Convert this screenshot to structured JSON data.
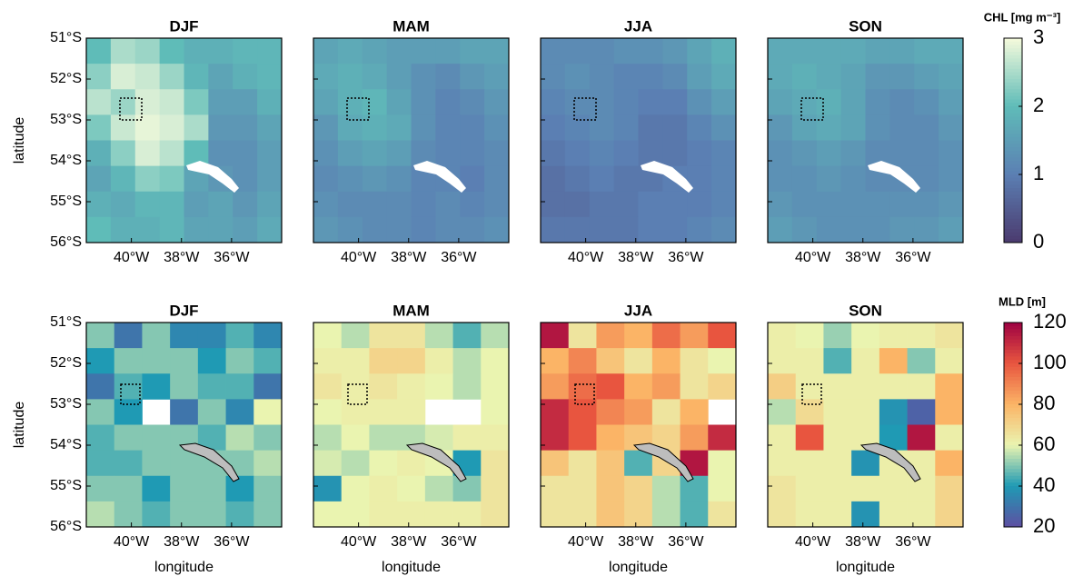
{
  "chart_data": [
    {
      "type": "heatmap",
      "ylabel": "latitude",
      "xlim": [
        -41.8,
        -34
      ],
      "ylim": [
        -56,
        -51
      ],
      "xticks": [
        {
          "value": -40,
          "label": "40°W"
        },
        {
          "value": -38,
          "label": "38°W"
        },
        {
          "value": -36,
          "label": "36°W"
        }
      ],
      "yticks": [
        {
          "value": -51,
          "label": "51°S"
        },
        {
          "value": -52,
          "label": "52°S"
        },
        {
          "value": -53,
          "label": "53°S"
        },
        {
          "value": -54,
          "label": "54°S"
        },
        {
          "value": -55,
          "label": "55°S"
        },
        {
          "value": -56,
          "label": "56°S"
        }
      ],
      "colormap": [
        "#4b3a6e",
        "#5b7fb3",
        "#5fbcb8",
        "#f6fbdc"
      ],
      "colorbar": {
        "label": "CHL [mg m⁻³]",
        "lim": [
          0,
          3
        ],
        "ticks": [
          0,
          1,
          2,
          3
        ]
      },
      "panels": [
        {
          "title": "DJF",
          "z": [
            [
              2.0,
              2.5,
              2.4,
              2.0,
              1.8,
              1.8,
              1.9,
              1.9
            ],
            [
              2.3,
              2.8,
              2.7,
              2.4,
              1.9,
              1.6,
              1.8,
              1.9
            ],
            [
              2.6,
              2.4,
              2.8,
              2.7,
              2.2,
              1.5,
              1.5,
              1.8
            ],
            [
              2.2,
              2.7,
              2.9,
              2.8,
              2.5,
              1.4,
              1.4,
              1.6
            ],
            [
              1.8,
              2.3,
              2.8,
              2.6,
              2.0,
              1.3,
              1.3,
              1.5
            ],
            [
              1.6,
              1.9,
              2.3,
              2.2,
              1.6,
              1.4,
              1.3,
              1.5
            ],
            [
              1.8,
              1.7,
              1.9,
              1.9,
              1.5,
              1.6,
              1.4,
              1.6
            ],
            [
              2.0,
              1.8,
              1.8,
              1.9,
              1.6,
              1.6,
              1.5,
              1.7
            ]
          ]
        },
        {
          "title": "MAM",
          "z": [
            [
              1.6,
              1.7,
              1.6,
              1.5,
              1.5,
              1.5,
              1.6,
              1.6
            ],
            [
              1.7,
              1.8,
              1.7,
              1.5,
              1.3,
              1.2,
              1.4,
              1.5
            ],
            [
              1.6,
              1.8,
              1.9,
              1.6,
              1.3,
              1.1,
              1.2,
              1.4
            ],
            [
              1.4,
              1.7,
              1.8,
              1.7,
              1.3,
              1.1,
              1.1,
              1.3
            ],
            [
              1.3,
              1.5,
              1.6,
              1.5,
              1.2,
              1.1,
              1.1,
              1.2
            ],
            [
              1.2,
              1.3,
              1.4,
              1.3,
              1.1,
              1.1,
              1.0,
              1.2
            ],
            [
              1.3,
              1.2,
              1.2,
              1.2,
              1.1,
              1.2,
              1.1,
              1.2
            ],
            [
              1.4,
              1.3,
              1.2,
              1.2,
              1.1,
              1.2,
              1.2,
              1.3
            ]
          ]
        },
        {
          "title": "JJA",
          "z": [
            [
              1.2,
              1.2,
              1.2,
              1.3,
              1.3,
              1.4,
              1.6,
              1.8
            ],
            [
              1.2,
              1.3,
              1.2,
              1.1,
              1.1,
              1.2,
              1.5,
              1.7
            ],
            [
              1.1,
              1.2,
              1.2,
              1.1,
              1.0,
              1.0,
              1.3,
              1.5
            ],
            [
              1.0,
              1.1,
              1.2,
              1.1,
              0.9,
              0.9,
              1.1,
              1.3
            ],
            [
              0.9,
              1.0,
              1.1,
              1.0,
              0.9,
              0.9,
              1.0,
              1.1
            ],
            [
              0.8,
              0.9,
              1.0,
              0.9,
              0.9,
              1.0,
              1.0,
              1.1
            ],
            [
              0.8,
              0.8,
              0.9,
              0.9,
              1.0,
              1.0,
              1.0,
              1.1
            ],
            [
              0.9,
              0.9,
              0.9,
              0.9,
              1.0,
              1.0,
              1.1,
              1.2
            ]
          ]
        },
        {
          "title": "SON",
          "z": [
            [
              1.7,
              1.7,
              1.7,
              1.7,
              1.6,
              1.6,
              1.7,
              1.7
            ],
            [
              1.7,
              1.8,
              1.7,
              1.6,
              1.4,
              1.4,
              1.5,
              1.6
            ],
            [
              1.6,
              1.7,
              1.8,
              1.6,
              1.3,
              1.2,
              1.3,
              1.5
            ],
            [
              1.4,
              1.6,
              1.7,
              1.6,
              1.3,
              1.2,
              1.2,
              1.4
            ],
            [
              1.3,
              1.4,
              1.5,
              1.4,
              1.2,
              1.2,
              1.2,
              1.3
            ],
            [
              1.3,
              1.3,
              1.4,
              1.3,
              1.2,
              1.2,
              1.2,
              1.3
            ],
            [
              1.4,
              1.3,
              1.3,
              1.3,
              1.3,
              1.3,
              1.3,
              1.4
            ],
            [
              1.5,
              1.4,
              1.3,
              1.3,
              1.3,
              1.4,
              1.4,
              1.5
            ]
          ]
        }
      ]
    },
    {
      "type": "heatmap",
      "ylabel": "latitude",
      "xlabel": "longitude",
      "xlim": [
        -41.8,
        -34
      ],
      "ylim": [
        -56,
        -51
      ],
      "xticks": [
        {
          "value": -40,
          "label": "40°W"
        },
        {
          "value": -38,
          "label": "38°W"
        },
        {
          "value": -36,
          "label": "36°W"
        }
      ],
      "yticks": [
        {
          "value": -51,
          "label": "51°S"
        },
        {
          "value": -52,
          "label": "52°S"
        },
        {
          "value": -53,
          "label": "53°S"
        },
        {
          "value": -54,
          "label": "54°S"
        },
        {
          "value": -55,
          "label": "55°S"
        },
        {
          "value": -56,
          "label": "56°S"
        }
      ],
      "colormap": [
        "#5e4fa2",
        "#1f9ab4",
        "#eaf4b0",
        "#fbb466",
        "#e8553f",
        "#9e0142"
      ],
      "colorbar": {
        "label": "MLD [m]",
        "lim": [
          20,
          120
        ],
        "ticks": [
          20,
          40,
          60,
          80,
          100,
          120
        ]
      },
      "panels": [
        {
          "title": "DJF",
          "z": [
            [
              50,
              30,
              50,
              35,
              35,
              45,
              35
            ],
            [
              40,
              50,
              50,
              50,
              40,
              50,
              45
            ],
            [
              30,
              45,
              40,
              50,
              45,
              45,
              30
            ],
            [
              50,
              40,
              null,
              30,
              50,
              35,
              60
            ],
            [
              45,
              50,
              50,
              50,
              45,
              55,
              50
            ],
            [
              45,
              45,
              50,
              50,
              50,
              50,
              55
            ],
            [
              50,
              50,
              40,
              50,
              50,
              40,
              50
            ],
            [
              55,
              50,
              45,
              50,
              50,
              45,
              50
            ]
          ]
        },
        {
          "title": "MAM",
          "z": [
            [
              60,
              55,
              65,
              65,
              55,
              45,
              55
            ],
            [
              62,
              62,
              70,
              70,
              62,
              55,
              60
            ],
            [
              65,
              62,
              65,
              62,
              60,
              55,
              60
            ],
            [
              60,
              62,
              62,
              62,
              null,
              null,
              60
            ],
            [
              55,
              60,
              55,
              55,
              58,
              62,
              62
            ],
            [
              58,
              55,
              60,
              62,
              60,
              40,
              65
            ],
            [
              38,
              60,
              62,
              60,
              55,
              50,
              65
            ],
            [
              60,
              60,
              62,
              62,
              62,
              62,
              65
            ]
          ]
        },
        {
          "title": "JJA",
          "z": [
            [
              115,
              65,
              85,
              80,
              95,
              85,
              100
            ],
            [
              80,
              90,
              75,
              65,
              80,
              65,
              60
            ],
            [
              85,
              95,
              100,
              80,
              85,
              65,
              70
            ],
            [
              110,
              100,
              90,
              85,
              65,
              80,
              null
            ],
            [
              110,
              100,
              80,
              75,
              70,
              85,
              110
            ],
            [
              75,
              65,
              75,
              45,
              70,
              115,
              60
            ],
            [
              65,
              65,
              75,
              70,
              55,
              45,
              60
            ],
            [
              65,
              65,
              75,
              70,
              55,
              45,
              65
            ]
          ]
        },
        {
          "title": "SON",
          "z": [
            [
              62,
              60,
              52,
              60,
              62,
              62,
              65
            ],
            [
              62,
              62,
              45,
              62,
              80,
              50,
              62
            ],
            [
              72,
              62,
              62,
              62,
              62,
              62,
              80
            ],
            [
              55,
              68,
              62,
              62,
              38,
              25,
              80
            ],
            [
              62,
              100,
              62,
              62,
              40,
              115,
              62
            ],
            [
              62,
              62,
              62,
              38,
              62,
              62,
              80
            ],
            [
              65,
              62,
              62,
              62,
              62,
              62,
              70
            ],
            [
              65,
              62,
              62,
              38,
              62,
              62,
              70
            ]
          ]
        }
      ]
    }
  ]
}
